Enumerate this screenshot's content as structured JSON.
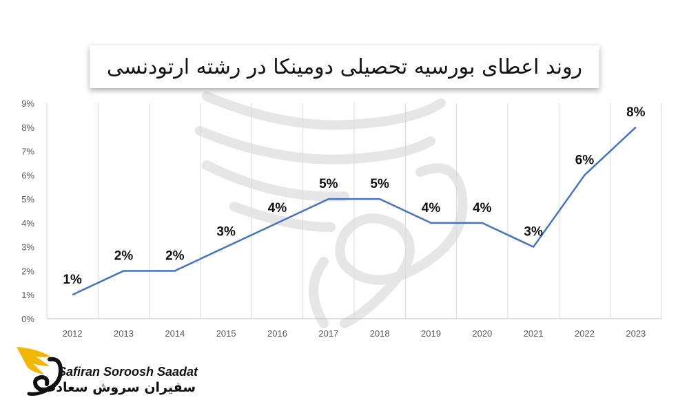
{
  "chart_data": {
    "type": "line",
    "title": "روند اعطای بورسیه تحصیلی دومینکا در رشته ارتودنسی",
    "categories": [
      "2012",
      "2013",
      "2014",
      "2015",
      "2016",
      "2017",
      "2018",
      "2019",
      "2020",
      "2021",
      "2022",
      "2023"
    ],
    "series": [
      {
        "values": [
          1,
          2,
          2,
          3,
          4,
          5,
          5,
          4,
          4,
          3,
          6,
          8
        ],
        "color": "#4472C4"
      }
    ],
    "data_labels": [
      "1%",
      "2%",
      "2%",
      "3%",
      "4%",
      "5%",
      "5%",
      "4%",
      "4%",
      "3%",
      "6%",
      "8%"
    ],
    "y_ticks": [
      "0%",
      "1%",
      "2%",
      "3%",
      "4%",
      "5%",
      "6%",
      "7%",
      "8%",
      "9%"
    ],
    "ylim": [
      0,
      9
    ],
    "grid": "vertical",
    "legend": "none"
  },
  "logo": {
    "text_en": "Safiran Soroosh Saadat",
    "text_fa": "سفیران سروش سعادت",
    "icon": "winged-swan-logo-icon",
    "colors": {
      "wing": "#F2B705",
      "body": "#111111"
    }
  }
}
